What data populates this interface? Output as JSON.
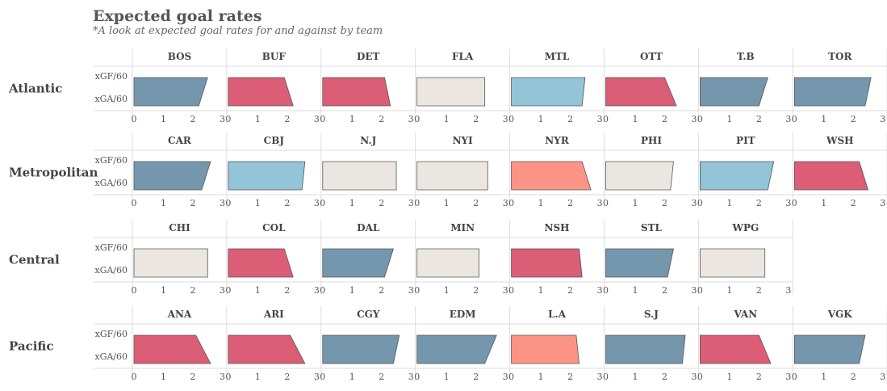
{
  "title": "Expected goal rates",
  "subtitle": "*A look at expected goal rates for and against by team",
  "chart_data": {
    "type": "bar",
    "xlim": [
      0,
      3
    ],
    "x_ticks": [
      "0",
      "1",
      "2",
      "3"
    ],
    "row_labels": [
      "xGF/60",
      "xGA/60"
    ],
    "colors": {
      "dark_blue": "#7597ad",
      "light_blue": "#93c4d8",
      "red": "#dc5e76",
      "salmon": "#fc9485",
      "beige": "#ece6e1",
      "outline": "#555555"
    },
    "divisions": [
      {
        "name": "Atlantic",
        "teams": [
          {
            "team": "BOS",
            "xGF60": 2.5,
            "xGA60": 2.2,
            "color": "dark_blue"
          },
          {
            "team": "BUF",
            "xGF60": 1.9,
            "xGA60": 2.2,
            "color": "red"
          },
          {
            "team": "DET",
            "xGF60": 2.1,
            "xGA60": 2.3,
            "color": "red"
          },
          {
            "team": "FLA",
            "xGF60": 2.3,
            "xGA60": 2.3,
            "color": "beige"
          },
          {
            "team": "MTL",
            "xGF60": 2.5,
            "xGA60": 2.4,
            "color": "light_blue"
          },
          {
            "team": "OTT",
            "xGF60": 2.0,
            "xGA60": 2.4,
            "color": "red"
          },
          {
            "team": "T.B",
            "xGF60": 2.3,
            "xGA60": 2.0,
            "color": "dark_blue"
          },
          {
            "team": "TOR",
            "xGF60": 2.6,
            "xGA60": 2.4,
            "color": "dark_blue"
          }
        ]
      },
      {
        "name": "Metropolitan",
        "teams": [
          {
            "team": "CAR",
            "xGF60": 2.6,
            "xGA60": 2.3,
            "color": "dark_blue"
          },
          {
            "team": "CBJ",
            "xGF60": 2.6,
            "xGA60": 2.5,
            "color": "light_blue"
          },
          {
            "team": "N.J",
            "xGF60": 2.5,
            "xGA60": 2.5,
            "color": "beige"
          },
          {
            "team": "NYI",
            "xGF60": 2.4,
            "xGA60": 2.4,
            "color": "beige"
          },
          {
            "team": "NYR",
            "xGF60": 2.4,
            "xGA60": 2.7,
            "color": "salmon"
          },
          {
            "team": "PHI",
            "xGF60": 2.3,
            "xGA60": 2.2,
            "color": "beige"
          },
          {
            "team": "PIT",
            "xGF60": 2.5,
            "xGA60": 2.3,
            "color": "light_blue"
          },
          {
            "team": "WSH",
            "xGF60": 2.2,
            "xGA60": 2.5,
            "color": "red"
          }
        ]
      },
      {
        "name": "Central",
        "teams": [
          {
            "team": "CHI",
            "xGF60": 2.5,
            "xGA60": 2.5,
            "color": "beige"
          },
          {
            "team": "COL",
            "xGF60": 1.9,
            "xGA60": 2.2,
            "color": "red"
          },
          {
            "team": "DAL",
            "xGF60": 2.4,
            "xGA60": 2.1,
            "color": "dark_blue"
          },
          {
            "team": "MIN",
            "xGF60": 2.1,
            "xGA60": 2.1,
            "color": "beige"
          },
          {
            "team": "NSH",
            "xGF60": 2.3,
            "xGA60": 2.4,
            "color": "red"
          },
          {
            "team": "STL",
            "xGF60": 2.3,
            "xGA60": 2.1,
            "color": "dark_blue"
          },
          {
            "team": "WPG",
            "xGF60": 2.2,
            "xGA60": 2.2,
            "color": "beige"
          }
        ]
      },
      {
        "name": "Pacific",
        "teams": [
          {
            "team": "ANA",
            "xGF60": 2.1,
            "xGA60": 2.6,
            "color": "red"
          },
          {
            "team": "ARI",
            "xGF60": 2.1,
            "xGA60": 2.6,
            "color": "red"
          },
          {
            "team": "CGY",
            "xGF60": 2.6,
            "xGA60": 2.4,
            "color": "dark_blue"
          },
          {
            "team": "EDM",
            "xGF60": 2.7,
            "xGA60": 2.3,
            "color": "dark_blue"
          },
          {
            "team": "L.A",
            "xGF60": 2.2,
            "xGA60": 2.3,
            "color": "salmon"
          },
          {
            "team": "S.J",
            "xGF60": 2.7,
            "xGA60": 2.6,
            "color": "dark_blue"
          },
          {
            "team": "VAN",
            "xGF60": 2.0,
            "xGA60": 2.4,
            "color": "red"
          },
          {
            "team": "VGK",
            "xGF60": 2.4,
            "xGA60": 2.2,
            "color": "dark_blue"
          }
        ]
      }
    ]
  }
}
